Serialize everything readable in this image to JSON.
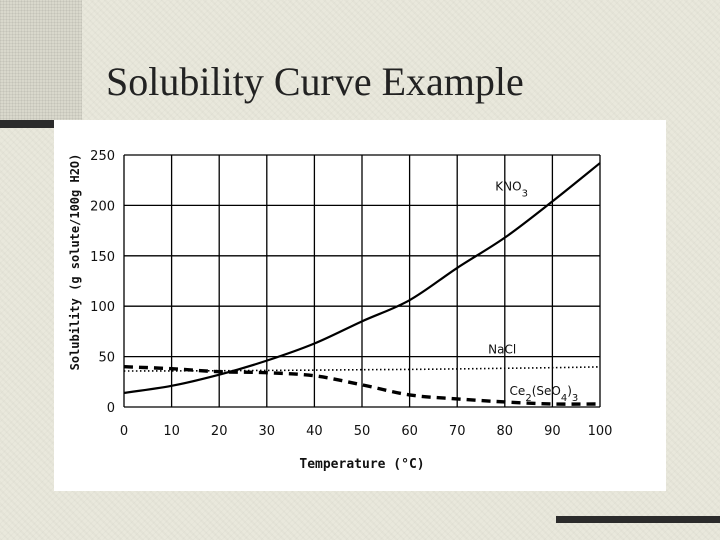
{
  "slide": {
    "title": "Solubility Curve Example"
  },
  "chart_data": {
    "type": "line",
    "title": "",
    "xlabel": "Temperature (°C)",
    "ylabel": "Solubility (g solute/100g H2O)",
    "xlim": [
      0,
      100
    ],
    "ylim": [
      0,
      250
    ],
    "xticks": [
      0,
      10,
      20,
      30,
      40,
      50,
      60,
      70,
      80,
      90,
      100
    ],
    "yticks": [
      0,
      50,
      100,
      150,
      200,
      250
    ],
    "grid": true,
    "series": [
      {
        "name": "KNO3",
        "style": "solid",
        "color": "#000000",
        "x": [
          0,
          10,
          20,
          30,
          40,
          50,
          60,
          70,
          80,
          90,
          100
        ],
        "y": [
          14,
          21,
          32,
          46,
          63,
          85,
          106,
          138,
          168,
          204,
          242
        ]
      },
      {
        "name": "NaCl",
        "style": "dotted",
        "color": "#000000",
        "x": [
          0,
          10,
          20,
          30,
          40,
          50,
          60,
          70,
          80,
          90,
          100
        ],
        "y": [
          35.7,
          35.8,
          36.0,
          36.3,
          36.6,
          37.0,
          37.3,
          37.8,
          38.4,
          39.0,
          39.8
        ]
      },
      {
        "name": "Ce2(SeO4)3",
        "style": "dashed",
        "color": "#000000",
        "x": [
          0,
          10,
          20,
          30,
          40,
          50,
          60,
          70,
          80,
          90,
          100
        ],
        "y": [
          40,
          38,
          35,
          34,
          31,
          22,
          12,
          8,
          5,
          3,
          3
        ]
      }
    ]
  }
}
